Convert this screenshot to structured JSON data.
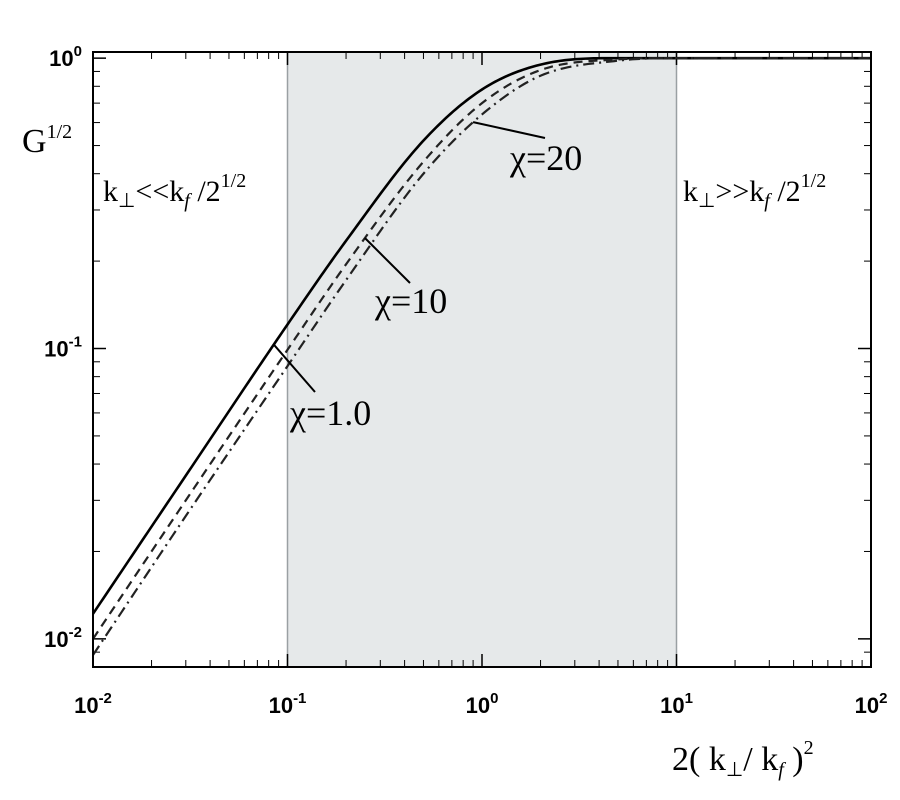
{
  "chart_data": {
    "type": "line",
    "x_scale": "log",
    "y_scale": "log",
    "xlim": [
      0.01,
      100
    ],
    "ylim": [
      0.008,
      1.05
    ],
    "x_ticks": [
      {
        "base": "10",
        "exp": "-2",
        "value": 0.01
      },
      {
        "base": "10",
        "exp": "-1",
        "value": 0.1
      },
      {
        "base": "10",
        "exp": "0",
        "value": 1
      },
      {
        "base": "10",
        "exp": "1",
        "value": 10
      },
      {
        "base": "10",
        "exp": "2",
        "value": 100
      }
    ],
    "y_ticks": [
      {
        "base": "10",
        "exp": "-2",
        "value": 0.01
      },
      {
        "base": "10",
        "exp": "-1",
        "value": 0.1
      },
      {
        "base": "10",
        "exp": "0",
        "value": 1
      }
    ],
    "xlabel": {
      "prefix": "2( k",
      "sub1": "⊥",
      "mid": "/ k",
      "sub2": "f",
      "close": " )",
      "sup": "2"
    },
    "ylabel": {
      "base": "G",
      "sup": "1/2"
    },
    "shaded_region": [
      0.1,
      10
    ],
    "region_labels": {
      "left": {
        "k": "k",
        "perp": "⊥",
        "rel": "<<",
        "kf": "k",
        "f": "f",
        "div": " /2",
        "sup": "1/2"
      },
      "right": {
        "k": "k",
        "perp": "⊥",
        "rel": ">>",
        "kf": "k",
        "f": "f",
        "div": " /2",
        "sup": "1/2"
      }
    },
    "series": [
      {
        "label": "χ=1.0",
        "style": "solid",
        "color": "#000000",
        "x": [
          0.01,
          0.03,
          0.1,
          0.2,
          0.5,
          1,
          2,
          5,
          10,
          100
        ],
        "y": [
          0.0122,
          0.0365,
          0.121,
          0.235,
          0.52,
          0.78,
          0.95,
          1.0,
          1.0,
          1.0
        ]
      },
      {
        "label": "χ=10",
        "style": "dashed",
        "color": "#222222",
        "x": [
          0.01,
          0.03,
          0.1,
          0.2,
          0.5,
          1,
          2,
          5,
          10,
          100
        ],
        "y": [
          0.01,
          0.03,
          0.099,
          0.195,
          0.44,
          0.7,
          0.91,
          0.99,
          1.0,
          1.0
        ]
      },
      {
        "label": "χ=20",
        "style": "dashdot",
        "color": "#222222",
        "x": [
          0.01,
          0.03,
          0.1,
          0.2,
          0.5,
          1,
          2,
          5,
          10,
          100
        ],
        "y": [
          0.0088,
          0.0265,
          0.087,
          0.172,
          0.4,
          0.64,
          0.87,
          0.98,
          1.0,
          1.0
        ]
      }
    ],
    "annotations": [
      {
        "text": "χ=1.0",
        "series": 0,
        "at_x": 0.085
      },
      {
        "text": "χ=10",
        "series": 1,
        "at_x": 0.25
      },
      {
        "text": "χ=20",
        "series": 2,
        "at_x": 0.9
      }
    ]
  }
}
